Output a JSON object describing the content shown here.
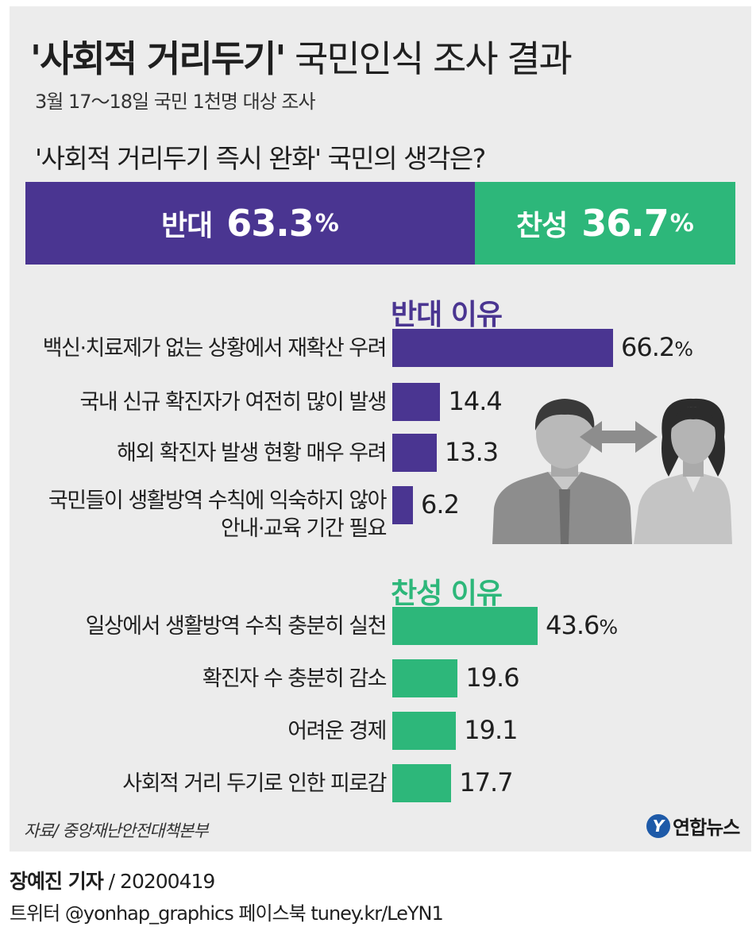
{
  "header": {
    "title_quoted": "'사회적 거리두기'",
    "title_rest": " 국민인식 조사 결과",
    "subtitle": "3월 17～18일 국민 1천명 대상 조사",
    "question": "'사회적 거리두기 즉시 완화' 국민의 생각은?"
  },
  "colors": {
    "oppose": "#4a3591",
    "support": "#2db77a",
    "panel": "#ececec"
  },
  "chart_data": [
    {
      "type": "bar",
      "orientation": "stacked-horizontal",
      "categories": [
        "반대",
        "찬성"
      ],
      "values": [
        63.3,
        36.7
      ],
      "unit": "%",
      "value_labels": [
        "63.3",
        "36.7"
      ]
    },
    {
      "type": "bar",
      "orientation": "horizontal",
      "title": "반대 이유",
      "categories": [
        "백신·치료제가 없는 상황에서 재확산 우려",
        "국내 신규 확진자가 여전히 많이 발생",
        "해외 확진자 발생 현황 매우 우려",
        "국민들이 생활방역 수칙에 익숙하지 않아 안내·교육 기간 필요"
      ],
      "label_lines": [
        [
          "백신·치료제가 없는 상황에서 재확산 우려"
        ],
        [
          "국내 신규 확진자가 여전히 많이 발생"
        ],
        [
          "해외 확진자 발생 현황 매우 우려"
        ],
        [
          "국민들이 생활방역 수칙에 익숙하지 않아",
          "안내·교육 기간 필요"
        ]
      ],
      "values": [
        66.2,
        14.4,
        13.3,
        6.2
      ],
      "value_labels": [
        "66.2",
        "14.4",
        "13.3",
        "6.2"
      ],
      "unit": "%",
      "color": "#4a3591"
    },
    {
      "type": "bar",
      "orientation": "horizontal",
      "title": "찬성 이유",
      "categories": [
        "일상에서 생활방역 수칙 충분히 실천",
        "확진자 수 충분히 감소",
        "어려운 경제",
        "사회적 거리 두기로 인한 피로감"
      ],
      "label_lines": [
        [
          "일상에서 생활방역 수칙 충분히 실천"
        ],
        [
          "확진자 수 충분히 감소"
        ],
        [
          "어려운 경제"
        ],
        [
          "사회적 거리 두기로 인한 피로감"
        ]
      ],
      "values": [
        43.6,
        19.6,
        19.1,
        17.7
      ],
      "value_labels": [
        "43.6",
        "19.6",
        "19.1",
        "17.7"
      ],
      "unit": "%",
      "color": "#2db77a"
    }
  ],
  "footer": {
    "source": "자료/ 중앙재난안전대책본부",
    "logo_mark": "Y",
    "logo_text": "연합뉴스",
    "reporter": "장예진 기자",
    "date": " / 20200419",
    "social": "트위터 @yonhap_graphics  페이스북 tuney.kr/LeYN1"
  },
  "icons": {
    "illustration": "man-woman-arrows-icon"
  }
}
